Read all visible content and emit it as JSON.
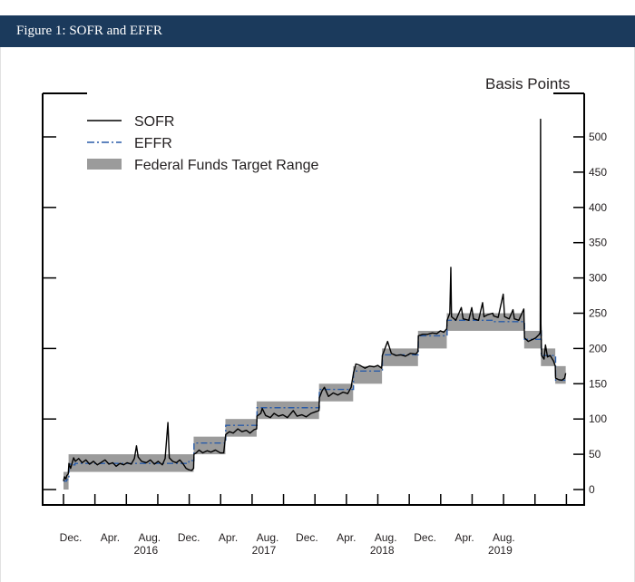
{
  "header": {
    "title": "Figure 1: SOFR and EFFR"
  },
  "chart_data": {
    "type": "line",
    "title": "Figure 1: SOFR and EFFR",
    "ylabel": "Basis Points",
    "ylim": [
      0,
      500
    ],
    "xlim": [
      "2015-12-01",
      "2019-11-29"
    ],
    "yticks": [
      "0",
      "50",
      "100",
      "150",
      "200",
      "250",
      "300",
      "350",
      "400",
      "450",
      "500"
    ],
    "xtick_labels": [
      "Dec.",
      "Apr.",
      "Aug.",
      "Dec.",
      "Apr.",
      "Aug.",
      "Dec.",
      "Apr.",
      "Aug.",
      "Dec.",
      "Apr.",
      "Aug."
    ],
    "year_labels": [
      {
        "label": "2016",
        "under": 2
      },
      {
        "label": "2017",
        "under": 5
      },
      {
        "label": "2018",
        "under": 8
      },
      {
        "label": "2019",
        "under": 11
      }
    ],
    "grid": false,
    "legend": {
      "placement": "top-left",
      "entries": [
        "SOFR",
        "EFFR",
        "Federal Funds Target Range"
      ]
    },
    "colors": {
      "sofr": "#000000",
      "effr": "#2a5ca8",
      "range": "#9b9b9b",
      "header": "#1b3a5c"
    },
    "series": [
      {
        "name": "SOFR",
        "style": "solid",
        "points": [
          [
            "2015-12-01",
            12
          ],
          [
            "2015-12-04",
            18
          ],
          [
            "2015-12-08",
            15
          ],
          [
            "2015-12-11",
            20
          ],
          [
            "2015-12-15",
            22
          ],
          [
            "2015-12-17",
            37
          ],
          [
            "2015-12-22",
            30
          ],
          [
            "2015-12-31",
            45
          ],
          [
            "2016-01-05",
            40
          ],
          [
            "2016-01-15",
            44
          ],
          [
            "2016-01-25",
            38
          ],
          [
            "2016-02-05",
            42
          ],
          [
            "2016-02-15",
            36
          ],
          [
            "2016-02-26",
            40
          ],
          [
            "2016-03-08",
            35
          ],
          [
            "2016-03-18",
            38
          ],
          [
            "2016-03-31",
            42
          ],
          [
            "2016-04-11",
            36
          ],
          [
            "2016-04-22",
            38
          ],
          [
            "2016-05-02",
            33
          ],
          [
            "2016-05-13",
            37
          ],
          [
            "2016-05-24",
            35
          ],
          [
            "2016-06-03",
            38
          ],
          [
            "2016-06-15",
            36
          ],
          [
            "2016-06-24",
            44
          ],
          [
            "2016-06-30",
            62
          ],
          [
            "2016-07-05",
            46
          ],
          [
            "2016-07-15",
            40
          ],
          [
            "2016-07-29",
            38
          ],
          [
            "2016-08-10",
            42
          ],
          [
            "2016-08-22",
            36
          ],
          [
            "2016-09-02",
            40
          ],
          [
            "2016-09-14",
            35
          ],
          [
            "2016-09-22",
            44
          ],
          [
            "2016-09-30",
            95
          ],
          [
            "2016-10-04",
            45
          ],
          [
            "2016-10-14",
            40
          ],
          [
            "2016-10-25",
            38
          ],
          [
            "2016-11-04",
            42
          ],
          [
            "2016-11-14",
            36
          ],
          [
            "2016-11-22",
            30
          ],
          [
            "2016-11-30",
            28
          ],
          [
            "2016-12-08",
            27
          ],
          [
            "2016-12-14",
            30
          ],
          [
            "2016-12-15",
            50
          ],
          [
            "2016-12-22",
            52
          ],
          [
            "2016-12-30",
            56
          ],
          [
            "2017-01-10",
            52
          ],
          [
            "2017-01-23",
            55
          ],
          [
            "2017-02-03",
            53
          ],
          [
            "2017-02-15",
            56
          ],
          [
            "2017-02-28",
            52
          ],
          [
            "2017-03-10",
            52
          ],
          [
            "2017-03-16",
            78
          ],
          [
            "2017-03-27",
            82
          ],
          [
            "2017-04-07",
            80
          ],
          [
            "2017-04-20",
            86
          ],
          [
            "2017-05-02",
            82
          ],
          [
            "2017-05-15",
            84
          ],
          [
            "2017-05-26",
            80
          ],
          [
            "2017-06-07",
            85
          ],
          [
            "2017-06-14",
            86
          ],
          [
            "2017-06-15",
            104
          ],
          [
            "2017-06-26",
            108
          ],
          [
            "2017-06-30",
            115
          ],
          [
            "2017-07-10",
            105
          ],
          [
            "2017-07-24",
            102
          ],
          [
            "2017-08-04",
            108
          ],
          [
            "2017-08-17",
            104
          ],
          [
            "2017-08-30",
            106
          ],
          [
            "2017-09-12",
            102
          ],
          [
            "2017-09-29",
            112
          ],
          [
            "2017-10-10",
            104
          ],
          [
            "2017-10-24",
            106
          ],
          [
            "2017-11-06",
            103
          ],
          [
            "2017-11-20",
            108
          ],
          [
            "2017-12-01",
            110
          ],
          [
            "2017-12-13",
            112
          ],
          [
            "2017-12-14",
            130
          ],
          [
            "2017-12-22",
            140
          ],
          [
            "2017-12-29",
            145
          ],
          [
            "2018-01-10",
            132
          ],
          [
            "2018-01-24",
            137
          ],
          [
            "2018-02-06",
            134
          ],
          [
            "2018-02-20",
            138
          ],
          [
            "2018-03-05",
            136
          ],
          [
            "2018-03-15",
            145
          ],
          [
            "2018-03-22",
            165
          ],
          [
            "2018-03-29",
            178
          ],
          [
            "2018-04-10",
            176
          ],
          [
            "2018-04-24",
            172
          ],
          [
            "2018-05-07",
            175
          ],
          [
            "2018-05-21",
            174
          ],
          [
            "2018-06-01",
            176
          ],
          [
            "2018-06-12",
            172
          ],
          [
            "2018-06-14",
            190
          ],
          [
            "2018-06-29",
            210
          ],
          [
            "2018-07-10",
            193
          ],
          [
            "2018-07-24",
            190
          ],
          [
            "2018-08-07",
            191
          ],
          [
            "2018-08-21",
            189
          ],
          [
            "2018-09-04",
            193
          ],
          [
            "2018-09-20",
            192
          ],
          [
            "2018-09-26",
            196
          ],
          [
            "2018-09-27",
            218
          ],
          [
            "2018-10-10",
            220
          ],
          [
            "2018-10-24",
            220
          ],
          [
            "2018-11-07",
            222
          ],
          [
            "2018-11-20",
            221
          ],
          [
            "2018-11-30",
            225
          ],
          [
            "2018-12-10",
            223
          ],
          [
            "2018-12-19",
            228
          ],
          [
            "2018-12-20",
            240
          ],
          [
            "2018-12-28",
            250
          ],
          [
            "2018-12-31",
            315
          ],
          [
            "2019-01-02",
            245
          ],
          [
            "2019-01-15",
            240
          ],
          [
            "2019-01-31",
            258
          ],
          [
            "2019-02-05",
            242
          ],
          [
            "2019-02-20",
            240
          ],
          [
            "2019-02-28",
            258
          ],
          [
            "2019-03-05",
            242
          ],
          [
            "2019-03-20",
            240
          ],
          [
            "2019-04-01",
            265
          ],
          [
            "2019-04-05",
            245
          ],
          [
            "2019-04-16",
            248
          ],
          [
            "2019-04-30",
            250
          ],
          [
            "2019-05-03",
            246
          ],
          [
            "2019-05-16",
            244
          ],
          [
            "2019-05-31",
            277
          ],
          [
            "2019-06-04",
            245
          ],
          [
            "2019-06-17",
            242
          ],
          [
            "2019-06-28",
            255
          ],
          [
            "2019-07-02",
            242
          ],
          [
            "2019-07-15",
            240
          ],
          [
            "2019-07-30",
            256
          ],
          [
            "2019-08-01",
            215
          ],
          [
            "2019-08-12",
            210
          ],
          [
            "2019-08-26",
            213
          ],
          [
            "2019-09-03",
            215
          ],
          [
            "2019-09-13",
            220
          ],
          [
            "2019-09-16",
            223
          ],
          [
            "2019-09-17",
            525
          ],
          [
            "2019-09-18",
            235
          ],
          [
            "2019-09-20",
            190
          ],
          [
            "2019-09-27",
            185
          ],
          [
            "2019-10-01",
            205
          ],
          [
            "2019-10-07",
            188
          ],
          [
            "2019-10-15",
            190
          ],
          [
            "2019-10-25",
            182
          ],
          [
            "2019-10-30",
            175
          ],
          [
            "2019-10-31",
            158
          ],
          [
            "2019-11-08",
            156
          ],
          [
            "2019-11-18",
            155
          ],
          [
            "2019-11-26",
            158
          ],
          [
            "2019-11-29",
            165
          ]
        ]
      },
      {
        "name": "EFFR",
        "style": "dash-dot",
        "points": [
          [
            "2015-12-01",
            12
          ],
          [
            "2015-12-10",
            14
          ],
          [
            "2015-12-17",
            36
          ],
          [
            "2015-12-31",
            35
          ],
          [
            "2016-01-04",
            37
          ],
          [
            "2016-11-30",
            41
          ],
          [
            "2016-12-15",
            66
          ],
          [
            "2017-03-16",
            91
          ],
          [
            "2017-06-15",
            116
          ],
          [
            "2017-12-14",
            142
          ],
          [
            "2018-03-22",
            168
          ],
          [
            "2018-06-14",
            191
          ],
          [
            "2018-09-27",
            218
          ],
          [
            "2018-12-20",
            240
          ],
          [
            "2019-05-02",
            238
          ],
          [
            "2019-08-01",
            213
          ],
          [
            "2019-09-17",
            225
          ],
          [
            "2019-09-19",
            190
          ],
          [
            "2019-10-31",
            155
          ],
          [
            "2019-11-29",
            155
          ]
        ]
      }
    ],
    "target_range": [
      [
        "2015-12-01",
        "2015-12-16",
        0,
        25
      ],
      [
        "2015-12-16",
        "2016-12-14",
        25,
        50
      ],
      [
        "2016-12-14",
        "2017-03-15",
        50,
        75
      ],
      [
        "2017-03-15",
        "2017-06-14",
        75,
        100
      ],
      [
        "2017-06-14",
        "2017-12-13",
        100,
        125
      ],
      [
        "2017-12-13",
        "2018-03-21",
        125,
        150
      ],
      [
        "2018-03-21",
        "2018-06-13",
        150,
        175
      ],
      [
        "2018-06-13",
        "2018-09-26",
        175,
        200
      ],
      [
        "2018-09-26",
        "2018-12-19",
        200,
        225
      ],
      [
        "2018-12-19",
        "2019-07-31",
        225,
        250
      ],
      [
        "2019-07-31",
        "2019-09-18",
        200,
        225
      ],
      [
        "2019-09-18",
        "2019-10-30",
        175,
        200
      ],
      [
        "2019-10-30",
        "2019-11-29",
        150,
        175
      ]
    ]
  }
}
